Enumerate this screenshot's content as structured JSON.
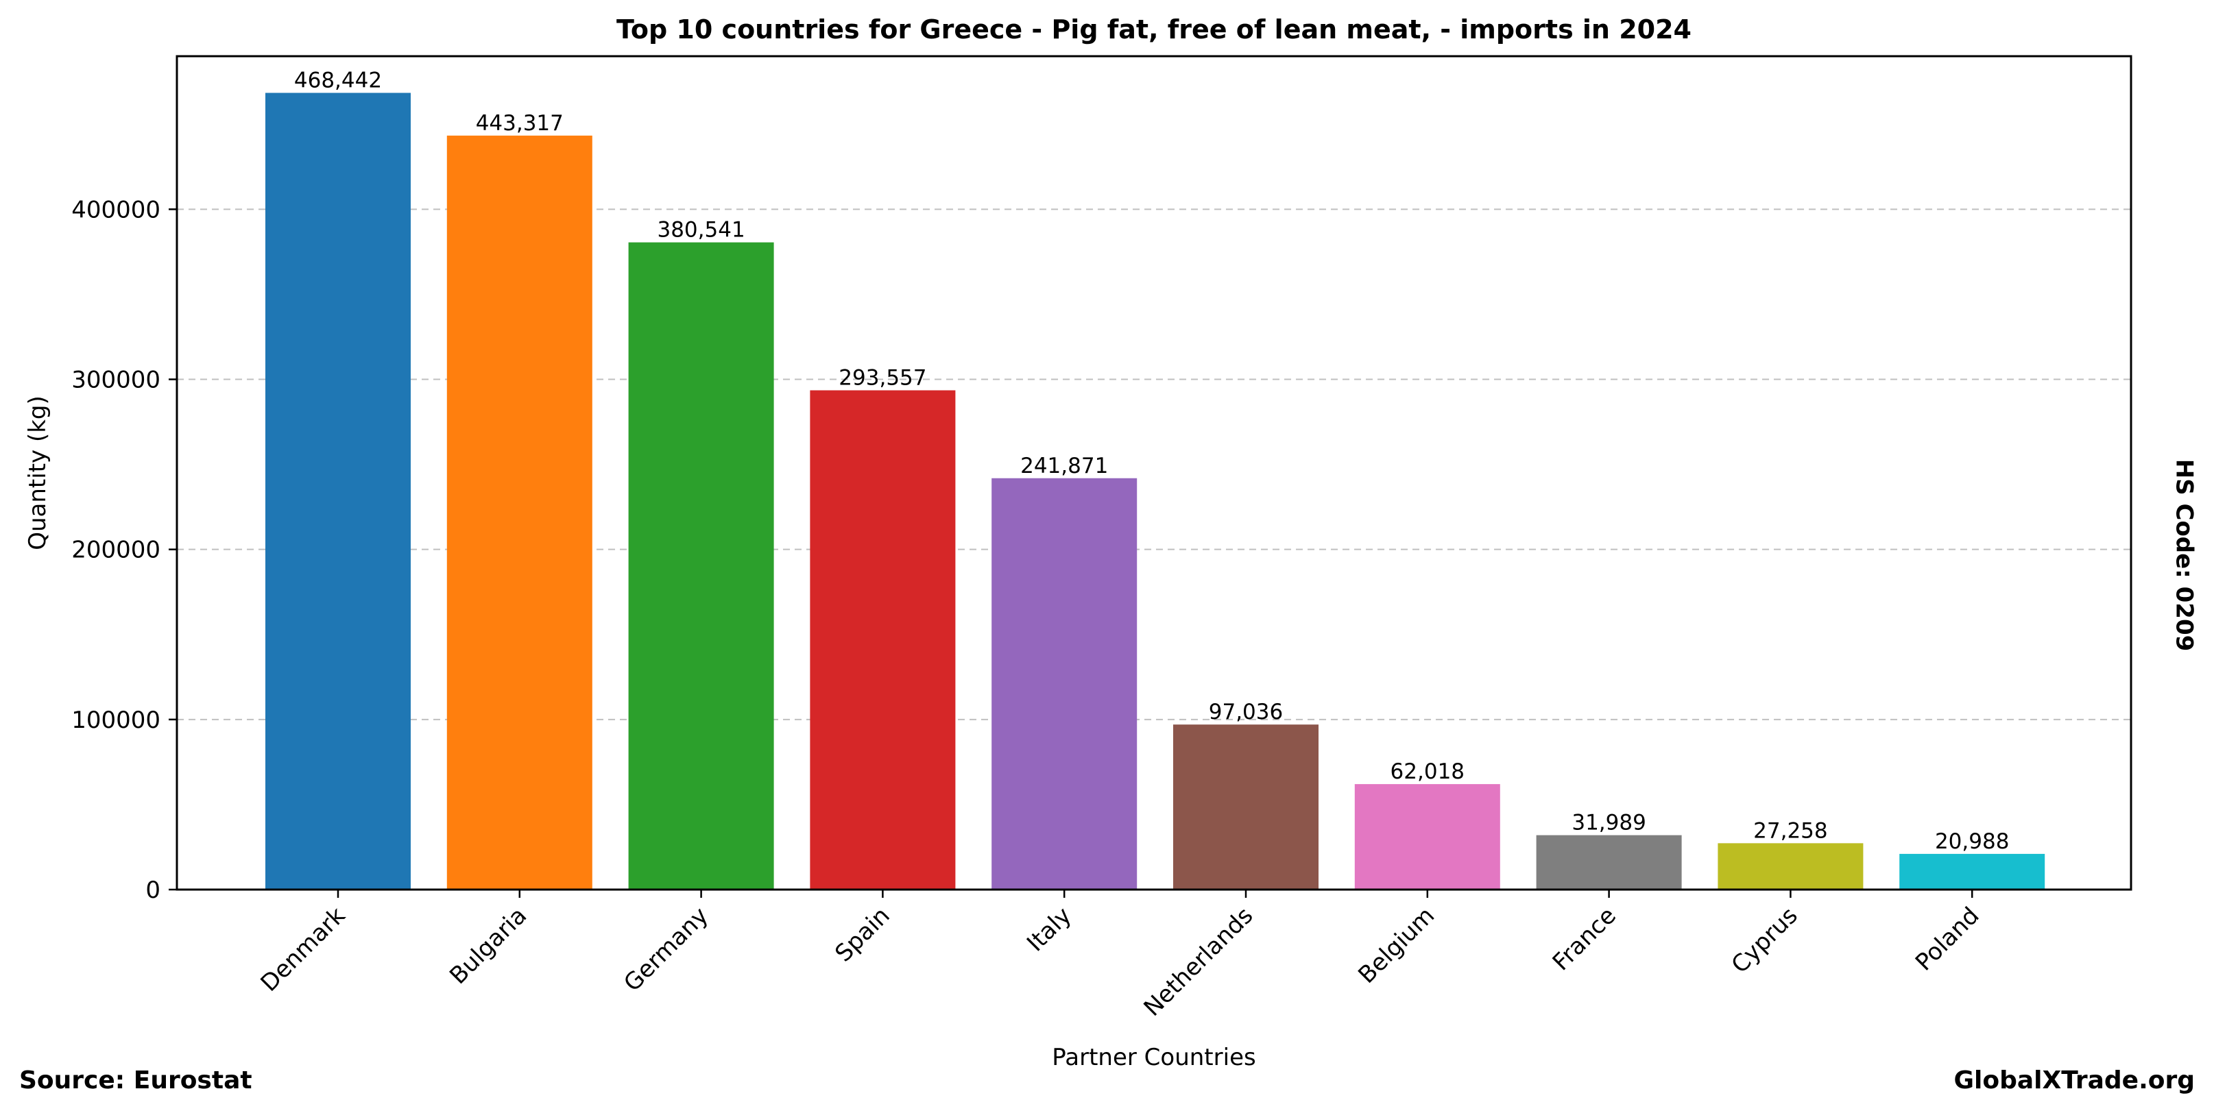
{
  "chart_data": {
    "type": "bar",
    "title": "Top 10 countries for Greece - Pig fat, free of lean meat, - imports in 2024",
    "xlabel": "Partner Countries",
    "ylabel": "Quantity (kg)",
    "ylim": [
      0,
      490000
    ],
    "yticks": [
      0,
      100000,
      200000,
      300000,
      400000
    ],
    "ytick_labels": [
      "0",
      "100000",
      "200000",
      "300000",
      "400000"
    ],
    "grid": "y-dashed",
    "categories": [
      "Denmark",
      "Bulgaria",
      "Germany",
      "Spain",
      "Italy",
      "Netherlands",
      "Belgium",
      "France",
      "Cyprus",
      "Poland"
    ],
    "values": [
      468442,
      443317,
      380541,
      293557,
      241871,
      97036,
      62018,
      31989,
      27258,
      20988
    ],
    "value_labels": [
      "468,442",
      "443,317",
      "380,541",
      "293,557",
      "241,871",
      "97,036",
      "62,018",
      "31,989",
      "27,258",
      "20,988"
    ],
    "colors": [
      "#1f77b4",
      "#ff7f0e",
      "#2ca02c",
      "#d62728",
      "#9467bd",
      "#8c564b",
      "#e377c2",
      "#7f7f7f",
      "#bcbd22",
      "#17becf"
    ]
  },
  "footer": {
    "source": "Source: Eurostat",
    "site": "GlobalXTrade.org"
  },
  "side_note": "HS Code: 0209"
}
